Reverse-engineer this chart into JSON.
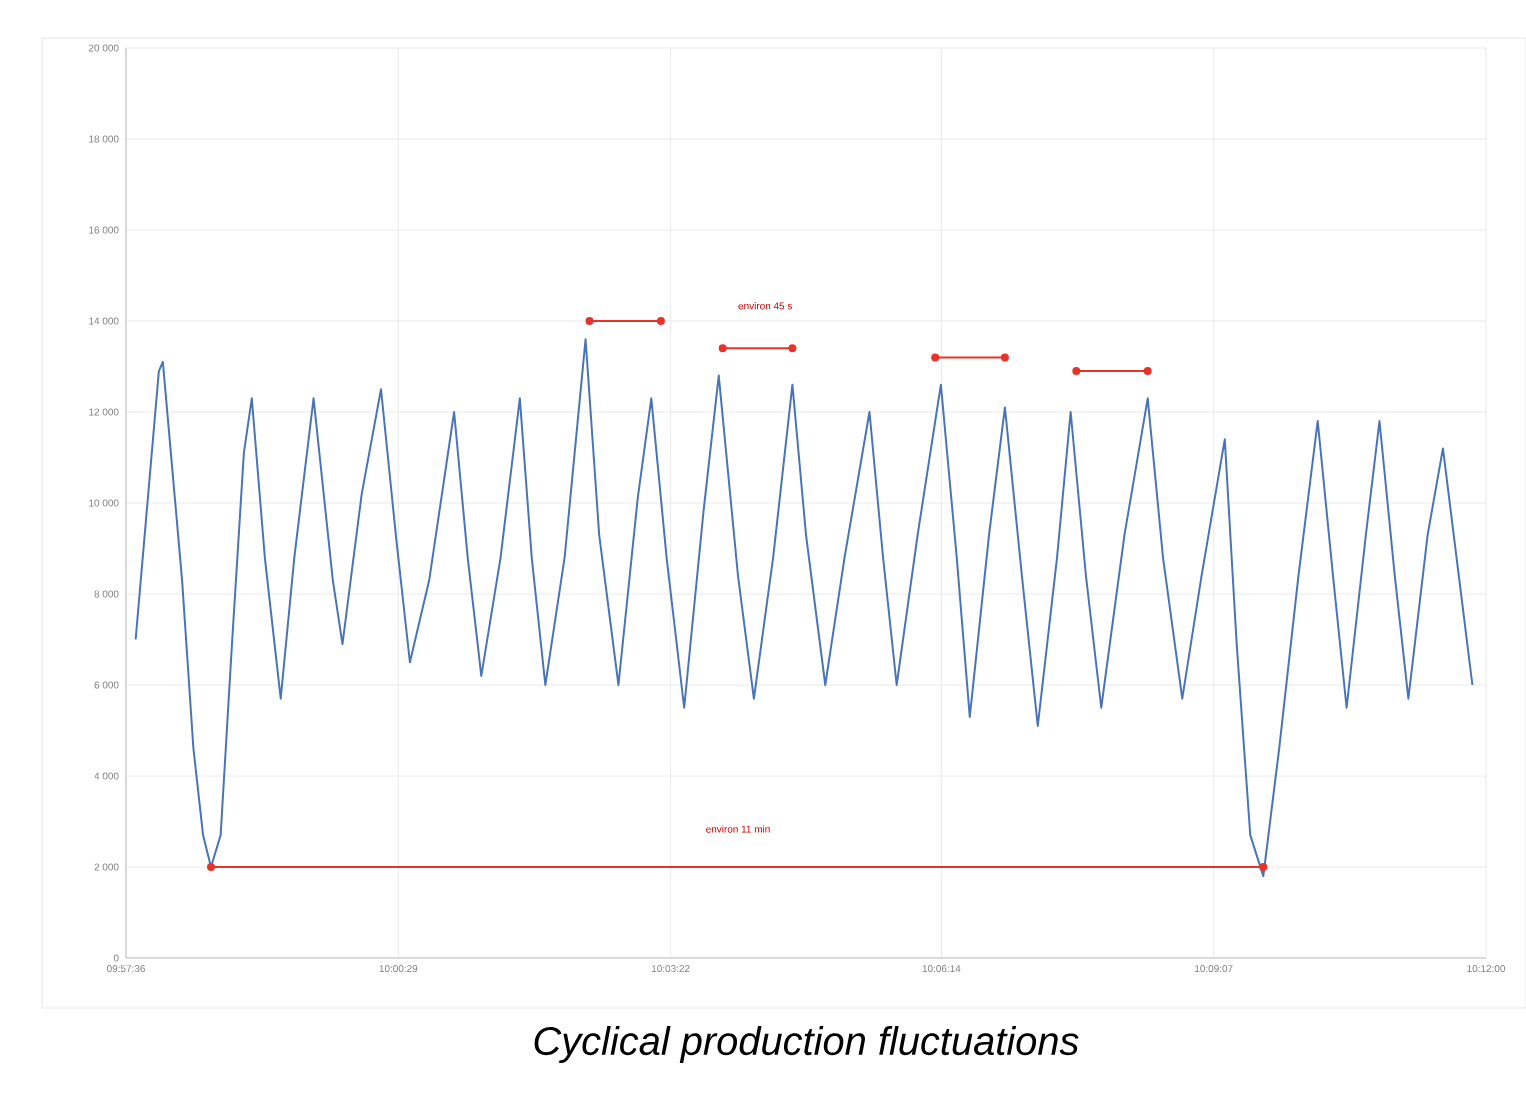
{
  "chart_data": {
    "type": "line",
    "title": "Cyclical production fluctuations",
    "xlim": [
      9.96,
      10.2
    ],
    "xticks": [
      {
        "value": 9.96,
        "label": "09:57:36"
      },
      {
        "value": 10.008056,
        "label": "10:00:29"
      },
      {
        "value": 10.056111,
        "label": "10:03:22"
      },
      {
        "value": 10.103889,
        "label": "10:06:14"
      },
      {
        "value": 10.151944,
        "label": "10:09:07"
      },
      {
        "value": 10.2,
        "label": "10:12:00"
      }
    ],
    "ylim": [
      0,
      20000
    ],
    "yticks": [
      0,
      {
        "value": 2000,
        "label": "2 000"
      },
      {
        "value": 4000,
        "label": "4 000"
      },
      {
        "value": 6000,
        "label": "6 000"
      },
      {
        "value": 8000,
        "label": "8 000"
      },
      {
        "value": 10000,
        "label": "10 000"
      },
      {
        "value": 12000,
        "label": "12 000"
      },
      {
        "value": 14000,
        "label": "14 000"
      },
      {
        "value": 16000,
        "label": "16 000"
      },
      {
        "value": 18000,
        "label": "18 000"
      },
      {
        "value": 20000,
        "label": "20 000"
      }
    ],
    "grid": true,
    "series": [
      {
        "color": "#4a74b8",
        "line_style": "solid",
        "marker": "none",
        "x": [
          9.9617,
          9.9658,
          9.9665,
          9.9699,
          9.9719,
          9.9736,
          9.975,
          9.9767,
          9.9787,
          9.9808,
          9.9822,
          9.9845,
          9.9873,
          9.9897,
          9.9931,
          9.9965,
          9.9982,
          10.0016,
          10.005,
          10.0077,
          10.0101,
          10.0135,
          10.0179,
          10.0203,
          10.0227,
          10.0261,
          10.0295,
          10.0316,
          10.034,
          10.0374,
          10.0411,
          10.0435,
          10.0469,
          10.0503,
          10.0527,
          10.0554,
          10.0585,
          10.0619,
          10.0646,
          10.068,
          10.0708,
          10.0742,
          10.0776,
          10.08,
          10.0834,
          10.0868,
          10.0912,
          10.0936,
          10.096,
          10.0997,
          10.1038,
          10.1066,
          10.1089,
          10.1123,
          10.1151,
          10.1181,
          10.1209,
          10.1243,
          10.1267,
          10.1294,
          10.1321,
          10.1362,
          10.1403,
          10.143,
          10.1464,
          10.1498,
          10.1539,
          10.156,
          10.1584,
          10.1607,
          10.1635,
          10.1669,
          10.1703,
          10.173,
          10.1754,
          10.1788,
          10.1812,
          10.1839,
          10.1863,
          10.1897,
          10.1924,
          10.1948,
          10.1976
        ],
        "values": [
          7000,
          12900,
          13100,
          8300,
          4600,
          2700,
          2000,
          2700,
          6900,
          11100,
          12300,
          8800,
          5700,
          8800,
          12300,
          8300,
          6900,
          10200,
          12500,
          9200,
          6500,
          8300,
          12000,
          8800,
          6200,
          8800,
          12300,
          8800,
          6000,
          8800,
          13600,
          9300,
          6000,
          10100,
          12300,
          8800,
          5500,
          9800,
          12800,
          8400,
          5700,
          8800,
          12600,
          9300,
          6000,
          8800,
          12000,
          8800,
          6000,
          9300,
          12600,
          8800,
          5300,
          9300,
          12100,
          8400,
          5100,
          8800,
          12000,
          8400,
          5500,
          9300,
          12300,
          8800,
          5700,
          8400,
          11400,
          6900,
          2700,
          1800,
          4600,
          8400,
          11800,
          8400,
          5500,
          9300,
          11800,
          8400,
          5700,
          9300,
          11200,
          8800,
          6000
        ]
      },
      {
        "color": "#e8332a",
        "line_style": "solid",
        "marker": "circle",
        "x": [
          9.975,
          10.1607
        ],
        "values": [
          2000,
          2000
        ]
      },
      {
        "color": "#e8332a",
        "line_style": "solid",
        "marker": "circle",
        "x": [
          10.0418,
          10.0544
        ],
        "values": [
          14000,
          14000
        ]
      },
      {
        "color": "#e8332a",
        "line_style": "solid",
        "marker": "circle",
        "x": [
          10.0653,
          10.0776
        ],
        "values": [
          13400,
          13400
        ]
      },
      {
        "color": "#e8332a",
        "line_style": "solid",
        "marker": "circle",
        "x": [
          10.1028,
          10.1151
        ],
        "values": [
          13200,
          13200
        ]
      },
      {
        "color": "#e8332a",
        "line_style": "solid",
        "marker": "circle",
        "x": [
          10.1277,
          10.1403
        ],
        "values": [
          12900,
          12900
        ]
      }
    ],
    "annotations": [
      "environ 45 s",
      "environ 11 min"
    ]
  }
}
